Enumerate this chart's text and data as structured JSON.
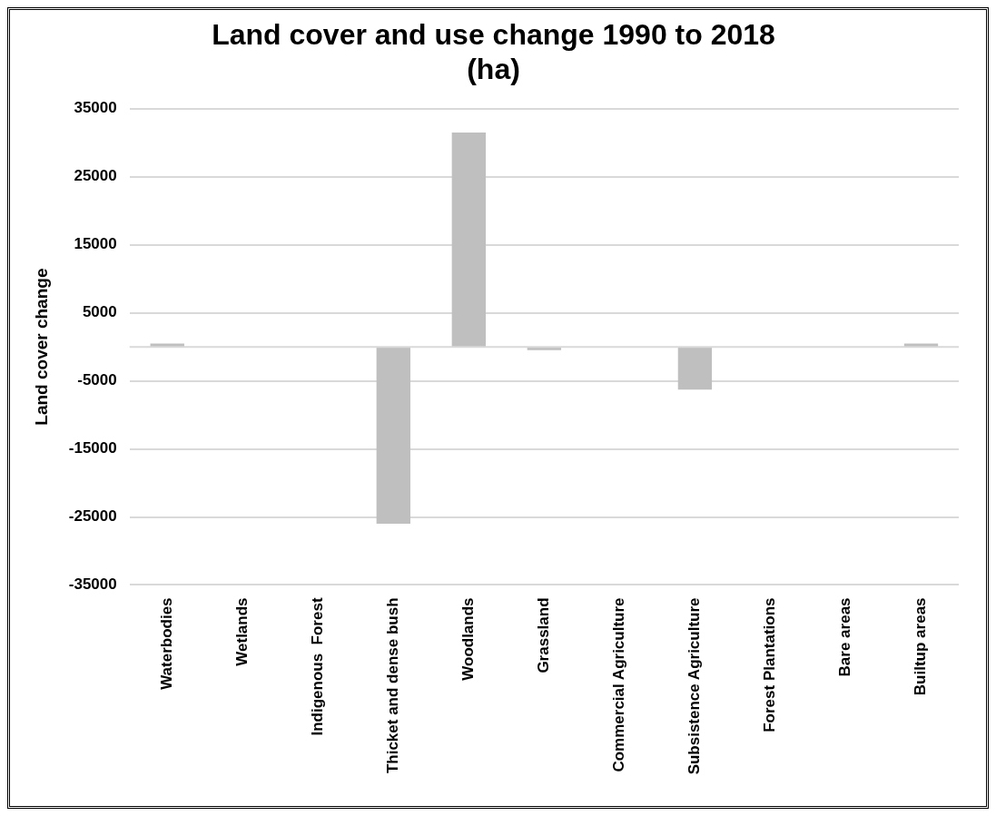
{
  "chart_data": {
    "type": "bar",
    "title": "Land cover and use change 1990 to 2018\n(ha)",
    "ylabel": "Land cover change",
    "categories": [
      "Waterbodies",
      "Wetlands",
      "Indigenous  Forest",
      "Thicket and dense bush",
      "Woodlands",
      "Grassland",
      "Commercial Agriculture",
      "Subsistence Agriculture",
      "Forest Plantations",
      "Bare areas",
      "Builtup areas"
    ],
    "values": [
      500,
      0,
      0,
      -26000,
      31500,
      -500,
      0,
      -6300,
      0,
      0,
      500
    ],
    "color": "#bfbfbf",
    "ylim": [
      -35000,
      35000
    ],
    "yticks": [
      35000,
      25000,
      15000,
      5000,
      -5000,
      -15000,
      -25000,
      -35000
    ],
    "ref_lines": [
      {
        "axis": "y",
        "value": 0,
        "color": "#d9d9d9"
      }
    ],
    "grid": "y",
    "legend": false
  }
}
